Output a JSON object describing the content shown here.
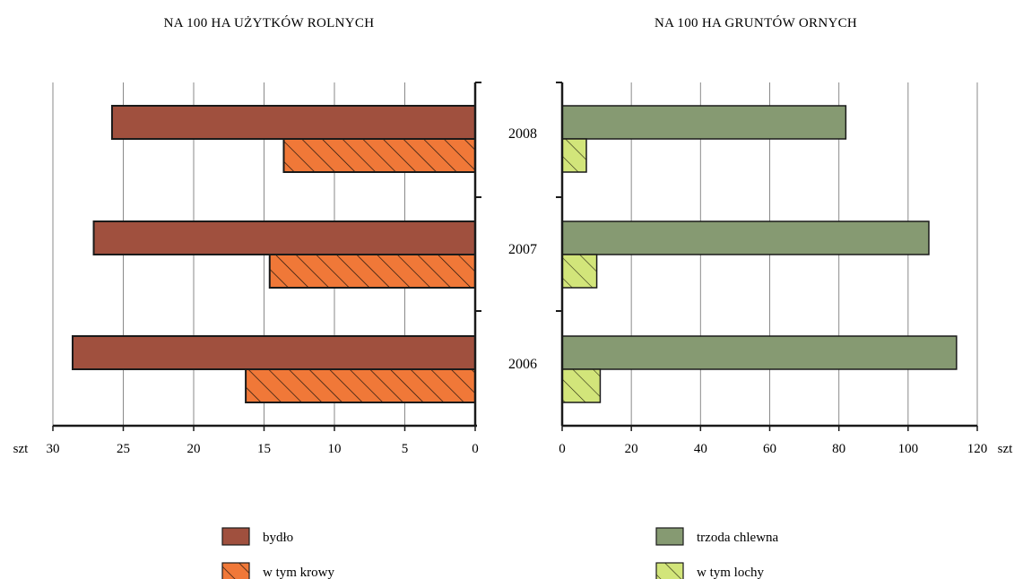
{
  "chart_data": [
    {
      "type": "bar",
      "orientation": "horizontal",
      "direction": "reversed",
      "title": "NA 100 HA UŻYTKÓW ROLNYCH",
      "categories": [
        "2008",
        "2007",
        "2006"
      ],
      "series": [
        {
          "name": "bydło",
          "values": [
            25.8,
            27.1,
            28.6
          ],
          "color": "#A0503E",
          "pattern": "solid"
        },
        {
          "name": "w tym krowy",
          "values": [
            13.6,
            14.6,
            16.3
          ],
          "color": "#F07838",
          "pattern": "hatched"
        }
      ],
      "xlim": [
        0,
        30
      ],
      "xticks": [
        "szt",
        "30",
        "25",
        "20",
        "15",
        "10",
        "5",
        "0"
      ],
      "unit_label": "szt",
      "grid": true
    },
    {
      "type": "bar",
      "orientation": "horizontal",
      "title": "NA 100 HA GRUNTÓW ORNYCH",
      "categories": [
        "2008",
        "2007",
        "2006"
      ],
      "series": [
        {
          "name": "trzoda chlewna",
          "values": [
            82,
            106,
            114
          ],
          "color": "#869A72",
          "pattern": "solid"
        },
        {
          "name": "w tym lochy",
          "values": [
            7,
            10,
            11
          ],
          "color": "#D2E57A",
          "pattern": "hatched"
        }
      ],
      "xlim": [
        0,
        120
      ],
      "xticks": [
        "0",
        "20",
        "40",
        "60",
        "80",
        "100",
        "120",
        "szt"
      ],
      "unit_label": "szt",
      "grid": true
    }
  ],
  "legend": {
    "left": [
      {
        "label": "bydło",
        "color": "#A0503E",
        "pattern": "solid"
      },
      {
        "label": "w tym krowy",
        "color": "#F07838",
        "pattern": "hatched"
      }
    ],
    "right": [
      {
        "label": "trzoda chlewna",
        "color": "#869A72",
        "pattern": "solid"
      },
      {
        "label": "w tym lochy",
        "color": "#D2E57A",
        "pattern": "hatched"
      }
    ]
  }
}
